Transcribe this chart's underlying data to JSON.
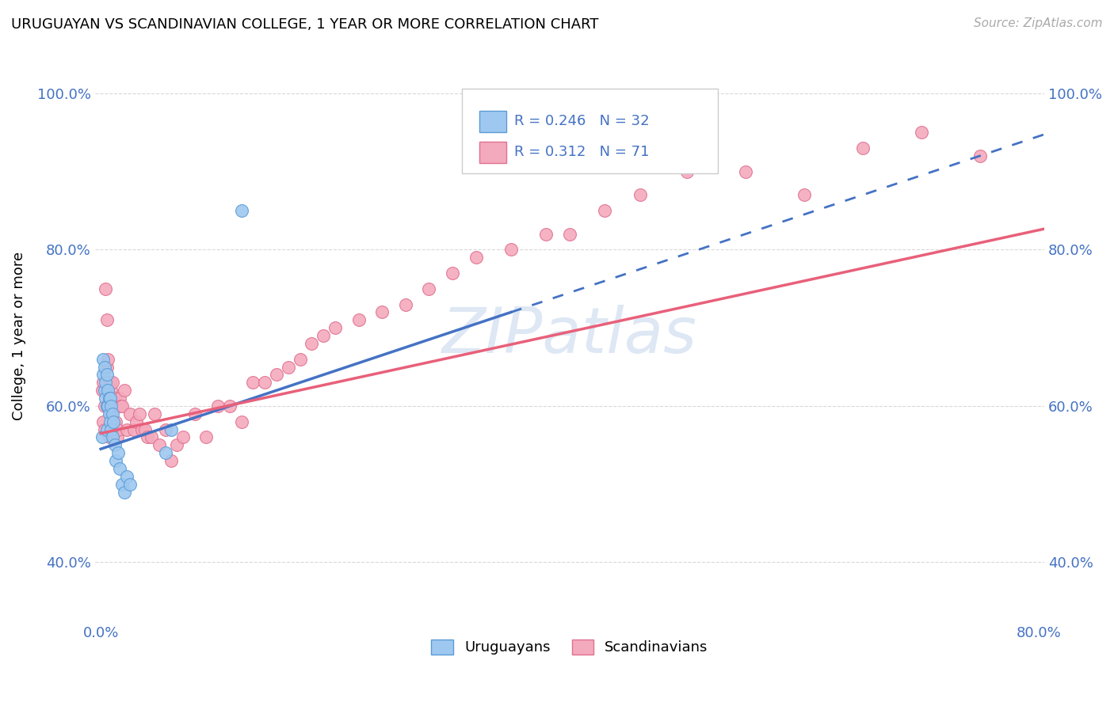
{
  "title": "URUGUAYAN VS SCANDINAVIAN COLLEGE, 1 YEAR OR MORE CORRELATION CHART",
  "source": "Source: ZipAtlas.com",
  "ylabel": "College, 1 year or more",
  "watermark": "ZIPatlas",
  "legend_r1": "R = 0.246   N = 32",
  "legend_r2": "R = 0.312   N = 71",
  "legend_uruguayan": "Uruguayans",
  "legend_scandinavian": "Scandinavians",
  "colors": {
    "uruguayan_fill": "#9EC8F0",
    "uruguayan_edge": "#5B9BD5",
    "scandinavian_fill": "#F4AABD",
    "scandinavian_edge": "#E07090",
    "uruguayan_line": "#4472C4",
    "scandinavian_line": "#E8607A",
    "text_blue": "#4472C4",
    "grid": "#D9D9D9",
    "background": "#FFFFFF",
    "watermark": "#C8D8EE"
  },
  "xlim": [
    0.0,
    0.8
  ],
  "ylim": [
    0.33,
    1.05
  ],
  "yticks": [
    0.4,
    0.6,
    0.8,
    1.0
  ],
  "xtick_labels_show": [
    "0.0%",
    "80.0%"
  ],
  "uruguayan_x": [
    0.001,
    0.002,
    0.002,
    0.003,
    0.003,
    0.004,
    0.004,
    0.005,
    0.005,
    0.005,
    0.006,
    0.006,
    0.007,
    0.007,
    0.008,
    0.008,
    0.009,
    0.009,
    0.01,
    0.01,
    0.011,
    0.012,
    0.013,
    0.015,
    0.016,
    0.018,
    0.02,
    0.022,
    0.025,
    0.055,
    0.06,
    0.12
  ],
  "uruguayan_y": [
    0.56,
    0.64,
    0.66,
    0.65,
    0.62,
    0.63,
    0.61,
    0.64,
    0.6,
    0.57,
    0.62,
    0.6,
    0.61,
    0.59,
    0.61,
    0.58,
    0.6,
    0.57,
    0.59,
    0.56,
    0.58,
    0.55,
    0.53,
    0.54,
    0.52,
    0.5,
    0.49,
    0.51,
    0.5,
    0.54,
    0.57,
    0.85
  ],
  "scandinavian_x": [
    0.001,
    0.002,
    0.002,
    0.003,
    0.003,
    0.004,
    0.005,
    0.005,
    0.006,
    0.006,
    0.007,
    0.008,
    0.008,
    0.009,
    0.009,
    0.01,
    0.01,
    0.011,
    0.012,
    0.013,
    0.014,
    0.015,
    0.016,
    0.017,
    0.018,
    0.02,
    0.022,
    0.025,
    0.028,
    0.03,
    0.033,
    0.035,
    0.038,
    0.04,
    0.043,
    0.046,
    0.05,
    0.055,
    0.06,
    0.065,
    0.07,
    0.08,
    0.09,
    0.1,
    0.11,
    0.12,
    0.13,
    0.14,
    0.15,
    0.16,
    0.17,
    0.18,
    0.19,
    0.2,
    0.22,
    0.24,
    0.26,
    0.28,
    0.3,
    0.32,
    0.35,
    0.38,
    0.4,
    0.43,
    0.46,
    0.5,
    0.55,
    0.6,
    0.65,
    0.7,
    0.75
  ],
  "scandinavian_y": [
    0.62,
    0.58,
    0.63,
    0.6,
    0.57,
    0.75,
    0.65,
    0.71,
    0.6,
    0.66,
    0.56,
    0.63,
    0.61,
    0.59,
    0.62,
    0.63,
    0.57,
    0.6,
    0.61,
    0.58,
    0.56,
    0.57,
    0.61,
    0.6,
    0.6,
    0.62,
    0.57,
    0.59,
    0.57,
    0.58,
    0.59,
    0.57,
    0.57,
    0.56,
    0.56,
    0.59,
    0.55,
    0.57,
    0.53,
    0.55,
    0.56,
    0.59,
    0.56,
    0.6,
    0.6,
    0.58,
    0.63,
    0.63,
    0.64,
    0.65,
    0.66,
    0.68,
    0.69,
    0.7,
    0.71,
    0.72,
    0.73,
    0.75,
    0.77,
    0.79,
    0.8,
    0.82,
    0.82,
    0.85,
    0.87,
    0.9,
    0.9,
    0.87,
    0.93,
    0.95,
    0.92
  ],
  "uru_line_solid_end": 0.35,
  "uru_line_dash_start": 0.35
}
